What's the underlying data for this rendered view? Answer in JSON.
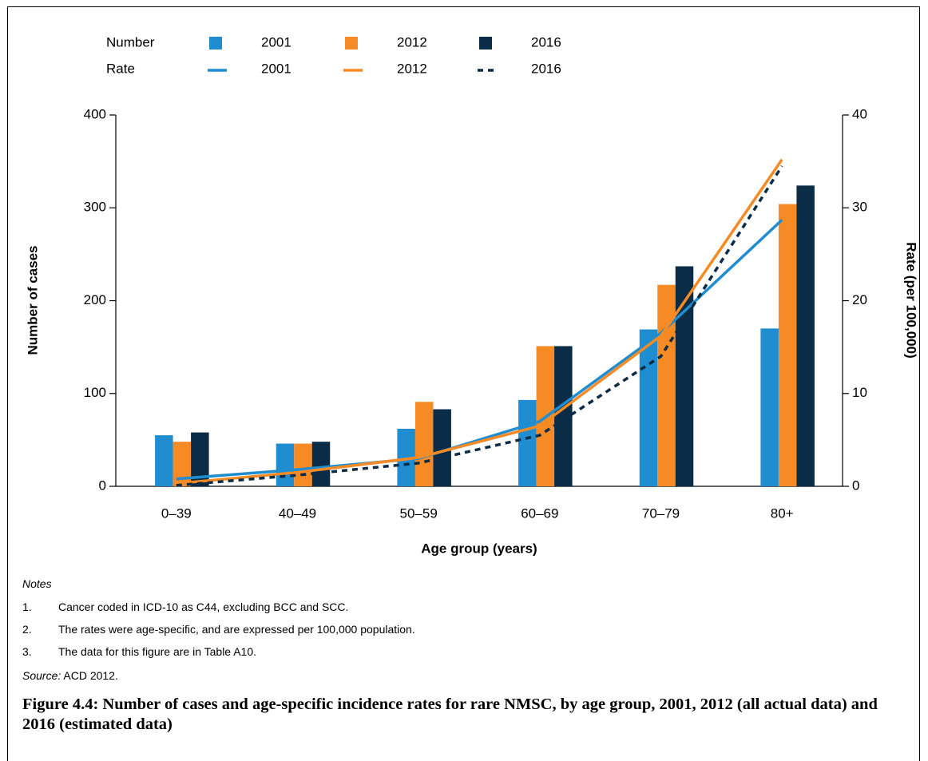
{
  "chart_data": {
    "type": "bar",
    "legend_titles": [
      "Number",
      "Rate"
    ],
    "xlabel": "Age group (years)",
    "ylabel": "Number of cases",
    "y2label": "Rate (per 100,000)",
    "categories": [
      "0–39",
      "40–49",
      "50–59",
      "60–69",
      "70–79",
      "80+"
    ],
    "ylim": [
      0,
      400
    ],
    "yticks": [
      0,
      100,
      200,
      300,
      400
    ],
    "y2lim": [
      0,
      40
    ],
    "y2ticks": [
      0,
      10,
      20,
      30,
      40
    ],
    "grid": false,
    "series": [
      {
        "name": "2001",
        "type": "bar",
        "color": "#1f8dcf",
        "values": [
          55,
          46,
          62,
          93,
          169,
          170
        ]
      },
      {
        "name": "2012",
        "type": "bar",
        "color": "#f68b26",
        "values": [
          48,
          46,
          91,
          151,
          217,
          304
        ]
      },
      {
        "name": "2016",
        "type": "bar",
        "color": "#0b2c47",
        "values": [
          58,
          48,
          83,
          151,
          237,
          324
        ]
      },
      {
        "name": "2001",
        "type": "line",
        "axis": "y2",
        "line_style": "solid",
        "color": "#1f8dcf",
        "values": [
          0.8,
          1.8,
          3.0,
          7.0,
          16.5,
          28.7
        ]
      },
      {
        "name": "2012",
        "type": "line",
        "axis": "y2",
        "line_style": "solid",
        "color": "#f68b26",
        "values": [
          0.3,
          1.5,
          3.1,
          6.5,
          16.2,
          35.2
        ]
      },
      {
        "name": "2016",
        "type": "line",
        "axis": "y2",
        "line_style": "dotted",
        "color": "#0b2c47",
        "values": [
          0.1,
          1.2,
          2.5,
          5.5,
          14.0,
          34.5
        ]
      }
    ]
  },
  "notes": {
    "title": "Notes",
    "items": [
      {
        "number": "1.",
        "text": "Cancer coded in ICD-10 as C44, excluding BCC and SCC."
      },
      {
        "number": "2.",
        "text": "The rates were age-specific, and are expressed per 100,000 population."
      },
      {
        "number": "3.",
        "text": "The data for this figure are in Table A10."
      }
    ]
  },
  "source": {
    "label": "Source:",
    "text": "ACD 2012."
  },
  "caption": "Figure 4.4: Number of cases and age-specific incidence rates for rare NMSC, by age group, 2001, 2012 (all actual data) and 2016 (estimated data)"
}
